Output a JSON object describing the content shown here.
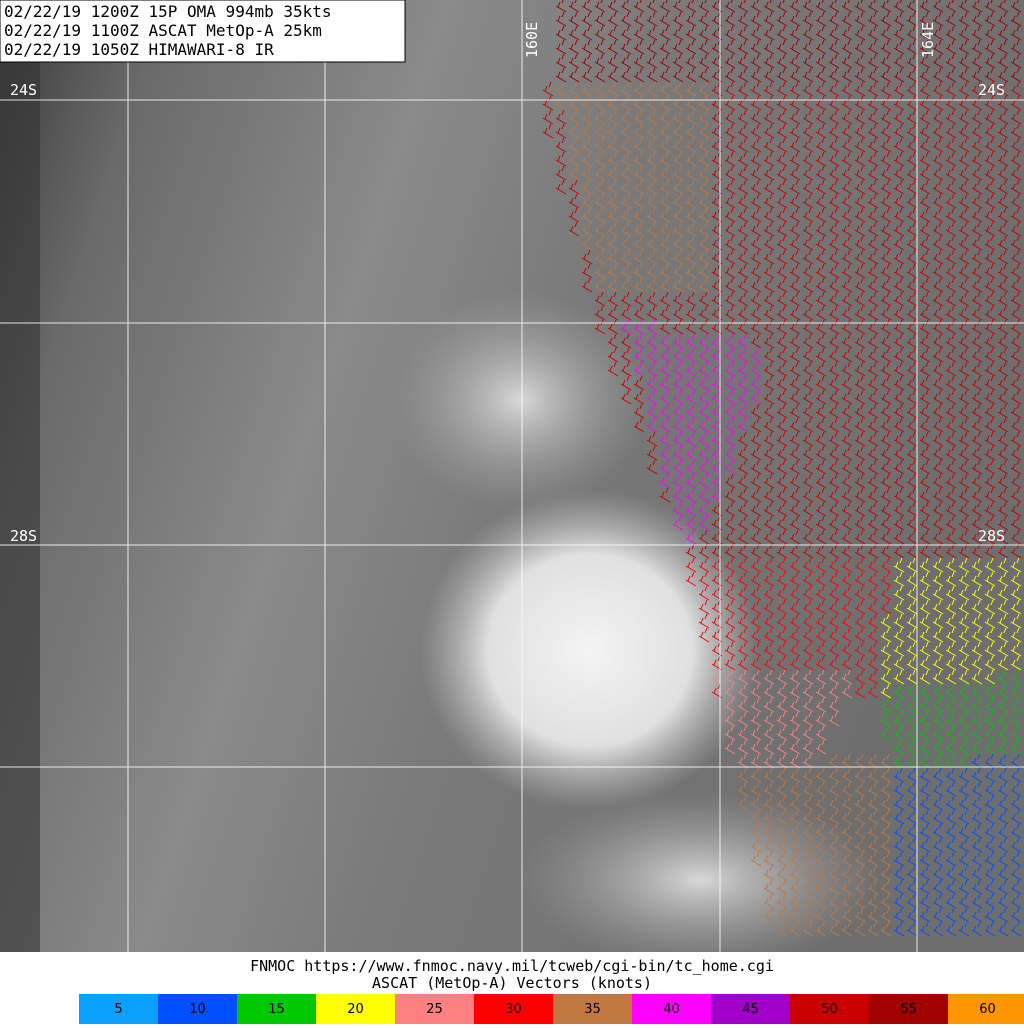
{
  "header": {
    "lines": [
      "02/22/19 1200Z  15P OMA 994mb 35kts",
      "02/22/19 1100Z  ASCAT MetOp-A 25km",
      "02/22/19 1050Z  HIMAWARI-8 IR"
    ]
  },
  "grid_labels": {
    "latitudes": [
      "24S",
      "28S"
    ],
    "longitudes": [
      "160E",
      "164E"
    ]
  },
  "footer": {
    "lines": [
      "FNMOC https://www.fnmoc.navy.mil/tcweb/cgi-bin/tc_home.cgi",
      "ASCAT (MetOp-A) Vectors (knots)"
    ]
  },
  "legend": {
    "items": [
      {
        "label": "5",
        "color": "#0ba0ff"
      },
      {
        "label": "10",
        "color": "#0050ff"
      },
      {
        "label": "15",
        "color": "#00c800"
      },
      {
        "label": "20",
        "color": "#ffff00"
      },
      {
        "label": "25",
        "color": "#ff8080"
      },
      {
        "label": "30",
        "color": "#ff0000"
      },
      {
        "label": "35",
        "color": "#c07840"
      },
      {
        "label": "40",
        "color": "#ff00ff"
      },
      {
        "label": "45",
        "color": "#a000c8"
      },
      {
        "label": "50",
        "color": "#c80000"
      },
      {
        "label": "55",
        "color": "#a00000"
      },
      {
        "label": "60",
        "color": "#ff9600"
      }
    ]
  }
}
